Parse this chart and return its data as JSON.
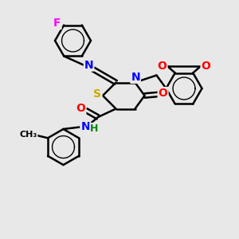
{
  "background_color": "#e8e8e8",
  "atom_colors": {
    "C": "#000000",
    "N": "#0000ff",
    "O": "#ff0000",
    "S": "#ccaa00",
    "F": "#ff00ff",
    "H": "#008800"
  },
  "bond_color": "#000000",
  "bond_width": 1.8,
  "font_size_atom": 10
}
